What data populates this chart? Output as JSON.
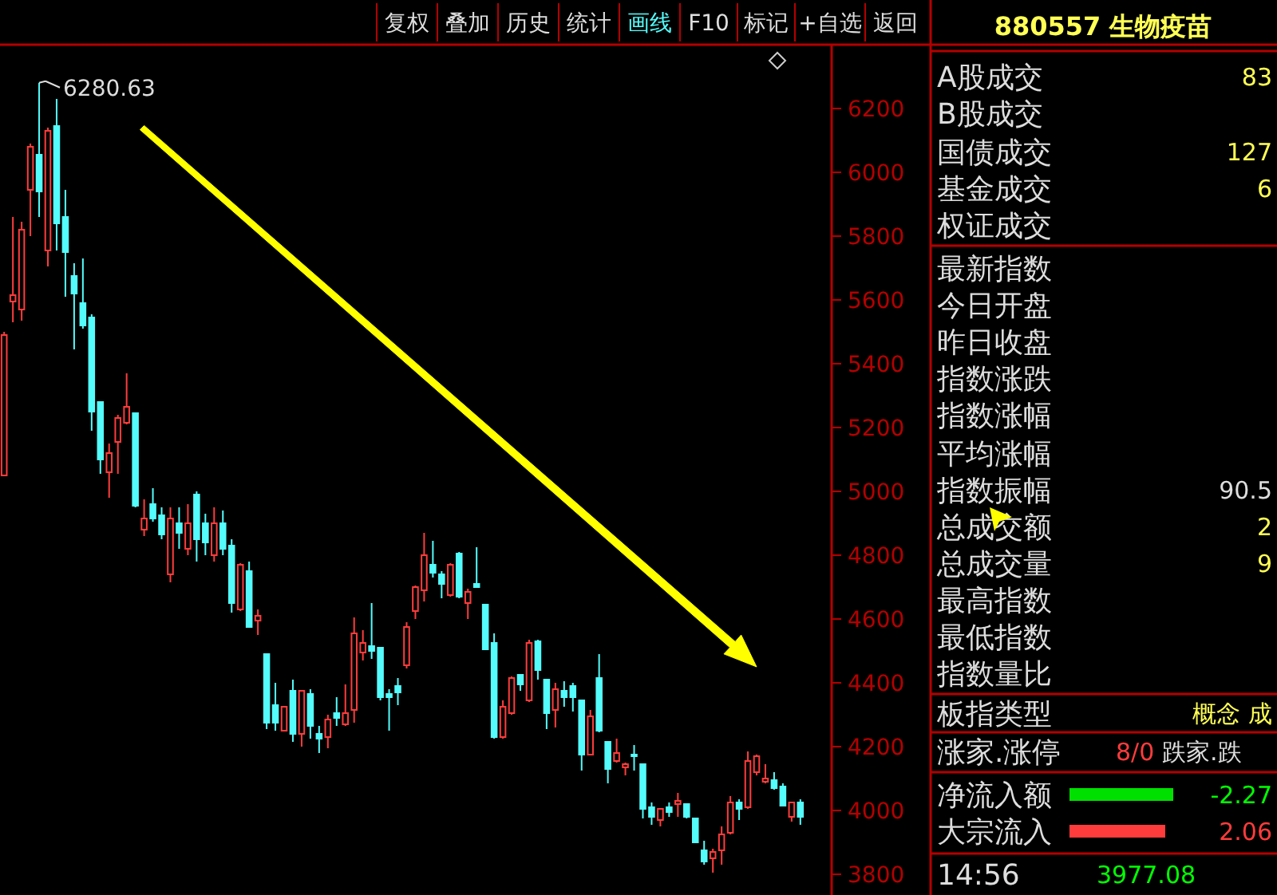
{
  "chart_data": [
    {
      "type": "candlestick",
      "categories": [
        null,
        null,
        null,
        null,
        null,
        null,
        null,
        null,
        null,
        null,
        null,
        null,
        null,
        null,
        null,
        null,
        null,
        null,
        null,
        null,
        null,
        null,
        null,
        null,
        null,
        null,
        null,
        null,
        null,
        null,
        null,
        null,
        null,
        null,
        null,
        null,
        null,
        null,
        null,
        null,
        null,
        null,
        null,
        null,
        null,
        null,
        null,
        null,
        null,
        null,
        null,
        null,
        null,
        null,
        null,
        null,
        null,
        null,
        null,
        null,
        null,
        null,
        null,
        null,
        null,
        null,
        null,
        null,
        null,
        null,
        null,
        null,
        null,
        null,
        null,
        null,
        null,
        null,
        null,
        null,
        null,
        null,
        null,
        null,
        null,
        null,
        null,
        null,
        null,
        null,
        null,
        null
      ],
      "ohlc": [
        [
          5050,
          5500,
          5050,
          5490
        ],
        [
          5595,
          5860,
          5530,
          5615
        ],
        [
          5570,
          5845,
          5535,
          5820
        ],
        [
          5945,
          6090,
          5800,
          6080
        ],
        [
          6055,
          6280.63,
          5860,
          5940
        ],
        [
          5755,
          6140,
          5705,
          6130
        ],
        [
          6145,
          6230,
          5755,
          5840
        ],
        [
          5860,
          5945,
          5610,
          5750
        ],
        [
          5675,
          5715,
          5445,
          5620
        ],
        [
          5590,
          5730,
          5510,
          5520
        ],
        [
          5545,
          5555,
          5190,
          5250
        ],
        [
          5280,
          5280,
          5055,
          5100
        ],
        [
          5060,
          5150,
          4980,
          5120
        ],
        [
          5155,
          5240,
          5055,
          5230
        ],
        [
          5215,
          5370,
          5210,
          5265
        ],
        [
          5245,
          5245,
          4950,
          4955
        ],
        [
          4880,
          4975,
          4860,
          4915
        ],
        [
          4960,
          5010,
          4905,
          4915
        ],
        [
          4925,
          4950,
          4850,
          4865
        ],
        [
          4740,
          4950,
          4715,
          4915
        ],
        [
          4900,
          4950,
          4820,
          4870
        ],
        [
          4820,
          4960,
          4800,
          4900
        ],
        [
          4990,
          5000,
          4780,
          4850
        ],
        [
          4900,
          4930,
          4800,
          4840
        ],
        [
          4800,
          4950,
          4780,
          4900
        ],
        [
          4900,
          4940,
          4800,
          4820
        ],
        [
          4830,
          4850,
          4620,
          4650
        ],
        [
          4630,
          4775,
          4625,
          4770
        ],
        [
          4750,
          4780,
          4575,
          4575
        ],
        [
          4595,
          4630,
          4550,
          4610
        ],
        [
          4490,
          4490,
          4255,
          4275
        ],
        [
          4330,
          4400,
          4250,
          4275
        ],
        [
          4250,
          4325,
          4250,
          4325
        ],
        [
          4375,
          4410,
          4215,
          4240
        ],
        [
          4240,
          4375,
          4200,
          4375
        ],
        [
          4365,
          4380,
          4225,
          4265
        ],
        [
          4240,
          4265,
          4180,
          4225
        ],
        [
          4230,
          4300,
          4195,
          4285
        ],
        [
          4305,
          4355,
          4265,
          4290
        ],
        [
          4270,
          4395,
          4265,
          4305
        ],
        [
          4315,
          4605,
          4275,
          4555
        ],
        [
          4495,
          4565,
          4470,
          4525
        ],
        [
          4515,
          4650,
          4475,
          4500
        ],
        [
          4510,
          4510,
          4345,
          4355
        ],
        [
          4365,
          4380,
          4250,
          4355
        ],
        [
          4390,
          4415,
          4330,
          4370
        ],
        [
          4455,
          4590,
          4445,
          4575
        ],
        [
          4625,
          4705,
          4600,
          4700
        ],
        [
          4690,
          4870,
          4655,
          4800
        ],
        [
          4770,
          4845,
          4730,
          4745
        ],
        [
          4740,
          4750,
          4665,
          4710
        ],
        [
          4675,
          4775,
          4670,
          4770
        ],
        [
          4805,
          4810,
          4665,
          4670
        ],
        [
          4650,
          4695,
          4600,
          4685
        ],
        [
          4710,
          4825,
          4700,
          4700
        ],
        [
          4645,
          4645,
          4505,
          4505
        ],
        [
          4525,
          4555,
          4225,
          4230
        ],
        [
          4230,
          4345,
          4225,
          4325
        ],
        [
          4305,
          4420,
          4300,
          4415
        ],
        [
          4425,
          4425,
          4375,
          4395
        ],
        [
          4345,
          4535,
          4340,
          4525
        ],
        [
          4530,
          4535,
          4410,
          4440
        ],
        [
          4410,
          4410,
          4255,
          4305
        ],
        [
          4315,
          4400,
          4260,
          4380
        ],
        [
          4375,
          4405,
          4325,
          4355
        ],
        [
          4390,
          4400,
          4310,
          4355
        ],
        [
          4345,
          4345,
          4125,
          4175
        ],
        [
          4175,
          4315,
          4175,
          4295
        ],
        [
          4415,
          4490,
          4245,
          4250
        ],
        [
          4215,
          4215,
          4085,
          4130
        ],
        [
          4155,
          4225,
          4150,
          4180
        ],
        [
          4135,
          4150,
          4110,
          4145
        ],
        [
          4175,
          4205,
          4125,
          4170
        ],
        [
          4145,
          4145,
          3975,
          4005
        ],
        [
          4010,
          4025,
          3955,
          3980
        ],
        [
          3970,
          4005,
          3950,
          4005
        ],
        [
          4010,
          4025,
          3980,
          3995
        ],
        [
          4020,
          4055,
          3980,
          4030
        ],
        [
          4020,
          4020,
          3975,
          3980
        ],
        [
          3975,
          3975,
          3900,
          3900
        ],
        [
          3875,
          3905,
          3830,
          3840
        ],
        [
          3850,
          3880,
          3805,
          3870
        ],
        [
          3875,
          3950,
          3830,
          3925
        ],
        [
          3930,
          4045,
          3925,
          4025
        ],
        [
          4025,
          4035,
          3970,
          4005
        ],
        [
          4010,
          4185,
          4005,
          4155
        ],
        [
          4120,
          4175,
          4110,
          4170
        ],
        [
          4090,
          4145,
          4085,
          4100
        ],
        [
          4095,
          4120,
          4065,
          4070
        ],
        [
          4075,
          4085,
          4015,
          4015
        ],
        [
          3980,
          4025,
          3965,
          4025
        ],
        [
          4025,
          4035,
          3955,
          3980
        ]
      ],
      "ylim": [
        3735,
        6390
      ],
      "yticks": [
        3800,
        4000,
        4200,
        4400,
        4600,
        4800,
        5000,
        5200,
        5400,
        5600,
        5800,
        6000,
        6200
      ],
      "tick_labels": "y",
      "grid": false,
      "annotations": [
        "6280.63",
        "复权",
        "叠加",
        "历史",
        "统计",
        "画线",
        "F10",
        "标记",
        "+自选",
        "返回"
      ]
    },
    {
      "type": "other",
      "title": "880557 生物疫苗",
      "annotations": [
        "A股成交",
        "83",
        "B股成交",
        "国债成交",
        "127",
        "基金成交",
        "6",
        "权证成交",
        "最新指数",
        "今日开盘",
        "昨日收盘",
        "指数涨跌",
        "指数涨幅",
        "平均涨幅",
        "指数振幅",
        "90.5",
        "总成交额",
        "2",
        "总成交量",
        "9",
        "最高指数",
        "最低指数",
        "指数量比",
        "板指类型",
        "概念 成",
        "涨家.涨停",
        "8/0",
        "跌家.跌",
        "净流入额",
        "-2.27",
        "大宗流入",
        "2.06",
        "14:56",
        "3977.08"
      ]
    }
  ]
}
